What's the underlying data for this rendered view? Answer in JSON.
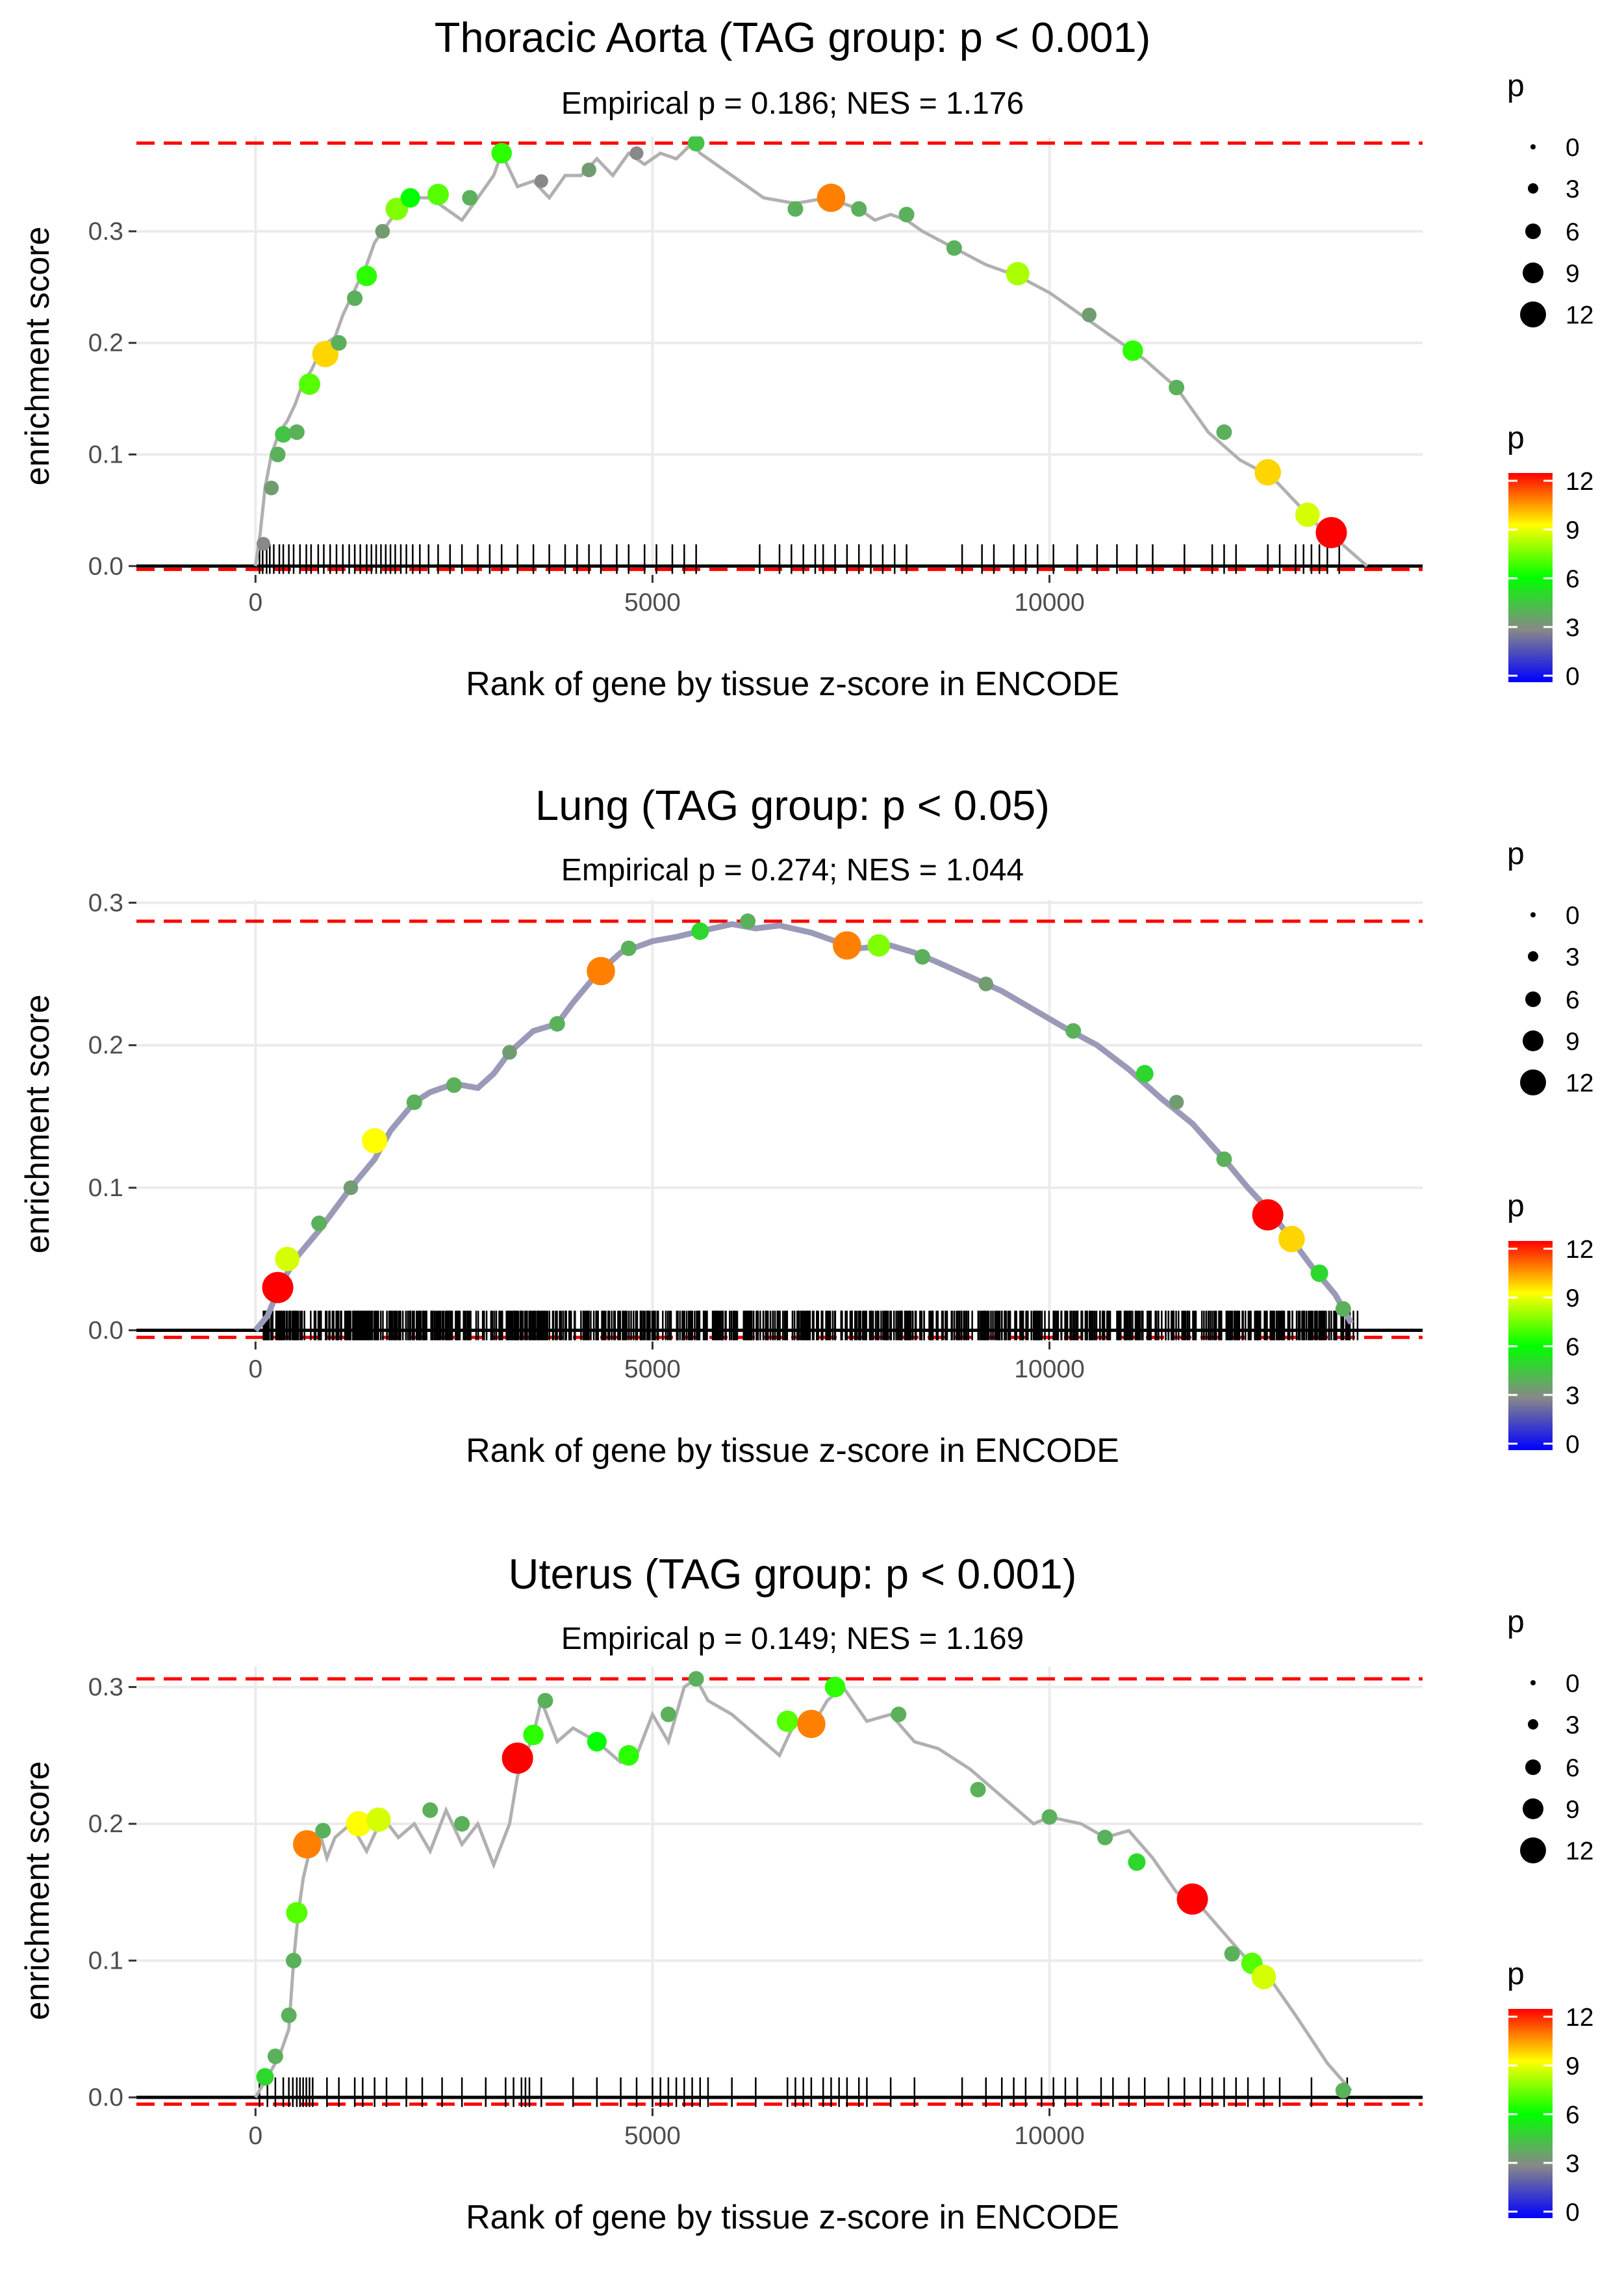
{
  "chart_data": [
    {
      "type": "line",
      "title": "Thoracic Aorta (TAG group: p < 0.001)",
      "subtitle": "Empirical p = 0.186; NES = 1.176",
      "xlabel": "Rank of gene by tissue z-score in ENCODE",
      "ylabel": "enrichment score",
      "xlim": [
        -1500,
        14700
      ],
      "ylim": [
        -0.008,
        0.385
      ],
      "x_ticks": [
        0,
        5000,
        10000
      ],
      "x_tick_labels": [
        "0",
        "5000",
        "10000"
      ],
      "y_ticks": [
        0.0,
        0.1,
        0.2,
        0.3
      ],
      "y_tick_labels": [
        "0.0",
        "0.1",
        "0.2",
        "0.3"
      ],
      "max_es": 0.379,
      "min_es": -0.003,
      "es_curve": {
        "x": [
          0,
          60,
          120,
          200,
          300,
          400,
          500,
          600,
          700,
          800,
          900,
          1000,
          1100,
          1200,
          1300,
          1400,
          1500,
          1600,
          1700,
          1800,
          2000,
          2200,
          2400,
          2600,
          2800,
          3000,
          3100,
          3300,
          3500,
          3700,
          3900,
          4100,
          4300,
          4500,
          4700,
          4900,
          5100,
          5300,
          5500,
          5600,
          6000,
          6400,
          6800,
          7200,
          7400,
          7600,
          7800,
          8000,
          8200,
          8400,
          8800,
          9200,
          9600,
          10000,
          10400,
          10800,
          11200,
          11600,
          12000,
          12400,
          12800,
          13200,
          13400,
          13600,
          14000
        ],
        "y": [
          0.0,
          0.03,
          0.07,
          0.1,
          0.12,
          0.13,
          0.145,
          0.165,
          0.175,
          0.19,
          0.2,
          0.205,
          0.225,
          0.24,
          0.255,
          0.27,
          0.29,
          0.3,
          0.31,
          0.32,
          0.33,
          0.33,
          0.32,
          0.31,
          0.33,
          0.35,
          0.37,
          0.34,
          0.345,
          0.33,
          0.35,
          0.35,
          0.365,
          0.35,
          0.37,
          0.36,
          0.37,
          0.365,
          0.379,
          0.37,
          0.35,
          0.33,
          0.325,
          0.33,
          0.325,
          0.32,
          0.31,
          0.315,
          0.31,
          0.3,
          0.285,
          0.27,
          0.26,
          0.245,
          0.225,
          0.205,
          0.185,
          0.16,
          0.12,
          0.095,
          0.08,
          0.05,
          0.035,
          0.025,
          0.0
        ]
      },
      "hits": [
        {
          "x": 100,
          "y": 0.02,
          "p": 3
        },
        {
          "x": 200,
          "y": 0.07,
          "p": 3.5
        },
        {
          "x": 280,
          "y": 0.1,
          "p": 4
        },
        {
          "x": 350,
          "y": 0.118,
          "p": 4.5
        },
        {
          "x": 520,
          "y": 0.12,
          "p": 4
        },
        {
          "x": 680,
          "y": 0.163,
          "p": 7
        },
        {
          "x": 880,
          "y": 0.19,
          "p": 9.5
        },
        {
          "x": 1050,
          "y": 0.2,
          "p": 4
        },
        {
          "x": 1250,
          "y": 0.24,
          "p": 4
        },
        {
          "x": 1400,
          "y": 0.26,
          "p": 6.5
        },
        {
          "x": 1600,
          "y": 0.3,
          "p": 3.5
        },
        {
          "x": 1780,
          "y": 0.32,
          "p": 7.5
        },
        {
          "x": 1950,
          "y": 0.33,
          "p": 6
        },
        {
          "x": 2300,
          "y": 0.333,
          "p": 7
        },
        {
          "x": 2700,
          "y": 0.33,
          "p": 4
        },
        {
          "x": 3100,
          "y": 0.37,
          "p": 6.5
        },
        {
          "x": 3600,
          "y": 0.345,
          "p": 3
        },
        {
          "x": 4200,
          "y": 0.355,
          "p": 3.5
        },
        {
          "x": 4800,
          "y": 0.37,
          "p": 3
        },
        {
          "x": 5550,
          "y": 0.379,
          "p": 4.5
        },
        {
          "x": 6800,
          "y": 0.32,
          "p": 4
        },
        {
          "x": 7250,
          "y": 0.33,
          "p": 10.5
        },
        {
          "x": 7600,
          "y": 0.32,
          "p": 4
        },
        {
          "x": 8200,
          "y": 0.315,
          "p": 4
        },
        {
          "x": 8800,
          "y": 0.285,
          "p": 4
        },
        {
          "x": 9600,
          "y": 0.262,
          "p": 8
        },
        {
          "x": 10500,
          "y": 0.225,
          "p": 3.5
        },
        {
          "x": 11050,
          "y": 0.193,
          "p": 6.5
        },
        {
          "x": 11600,
          "y": 0.16,
          "p": 4
        },
        {
          "x": 12200,
          "y": 0.12,
          "p": 4
        },
        {
          "x": 12750,
          "y": 0.084,
          "p": 9.5
        },
        {
          "x": 13250,
          "y": 0.046,
          "p": 8.5
        },
        {
          "x": 13550,
          "y": 0.03,
          "p": 12
        }
      ],
      "rug_ranks": [
        50,
        90,
        140,
        180,
        230,
        300,
        350,
        420,
        480,
        560,
        640,
        700,
        790,
        860,
        940,
        1020,
        1100,
        1180,
        1250,
        1320,
        1400,
        1460,
        1520,
        1580,
        1640,
        1700,
        1760,
        1830,
        1900,
        1980,
        2070,
        2180,
        2300,
        2450,
        2600,
        2800,
        2950,
        3100,
        3300,
        3500,
        3700,
        3900,
        4050,
        4200,
        4350,
        4550,
        4700,
        4900,
        5050,
        5250,
        5400,
        5550,
        6350,
        6600,
        6750,
        6900,
        7050,
        7150,
        7300,
        7450,
        7600,
        7750,
        7900,
        8050,
        8200,
        8900,
        9150,
        9300,
        9550,
        9700,
        9850,
        10050,
        10350,
        10600,
        10850,
        11100,
        11300,
        11700,
        12050,
        12200,
        12350,
        12750,
        12900,
        13100,
        13200,
        13300,
        13400,
        13500,
        13650
      ],
      "legend": {
        "size_title": "p",
        "size_labels": [
          "0",
          "3",
          "6",
          "9",
          "12"
        ],
        "color_title": "p",
        "color_labels": [
          "12",
          "9",
          "6",
          "3",
          "0"
        ]
      }
    },
    {
      "type": "line",
      "title": "Lung (TAG group: p < 0.05)",
      "subtitle": "Empirical p = 0.274; NES = 1.044",
      "xlabel": "Rank of gene by tissue z-score in ENCODE",
      "ylabel": "enrichment score",
      "xlim": [
        -1500,
        14700
      ],
      "ylim": [
        -0.008,
        0.302
      ],
      "x_ticks": [
        0,
        5000,
        10000
      ],
      "x_tick_labels": [
        "0",
        "5000",
        "10000"
      ],
      "y_ticks": [
        0.0,
        0.1,
        0.2,
        0.3
      ],
      "y_tick_labels": [
        "0.0",
        "0.1",
        "0.2",
        "0.3"
      ],
      "max_es": 0.287,
      "min_es": -0.005,
      "es_curve": {
        "x": [
          0,
          150,
          300,
          500,
          800,
          1000,
          1200,
          1500,
          1700,
          2000,
          2200,
          2500,
          2800,
          3000,
          3200,
          3500,
          3800,
          4000,
          4300,
          4600,
          5000,
          5300,
          5600,
          6000,
          6300,
          6600,
          7000,
          7300,
          7600,
          8000,
          8300,
          8600,
          9000,
          9400,
          9800,
          10200,
          10600,
          11000,
          11400,
          11800,
          12200,
          12500,
          12800,
          13100,
          13300,
          13600,
          13800
        ],
        "y": [
          0.0,
          0.01,
          0.03,
          0.05,
          0.07,
          0.085,
          0.1,
          0.12,
          0.14,
          0.16,
          0.167,
          0.173,
          0.17,
          0.18,
          0.195,
          0.21,
          0.215,
          0.23,
          0.25,
          0.265,
          0.273,
          0.276,
          0.28,
          0.285,
          0.282,
          0.284,
          0.279,
          0.273,
          0.268,
          0.27,
          0.265,
          0.258,
          0.248,
          0.238,
          0.225,
          0.212,
          0.2,
          0.183,
          0.163,
          0.145,
          0.12,
          0.1,
          0.082,
          0.06,
          0.045,
          0.025,
          0.005
        ]
      },
      "hits": [
        {
          "x": 280,
          "y": 0.03,
          "p": 12
        },
        {
          "x": 400,
          "y": 0.05,
          "p": 8.5
        },
        {
          "x": 800,
          "y": 0.075,
          "p": 4
        },
        {
          "x": 1200,
          "y": 0.1,
          "p": 3.5
        },
        {
          "x": 1500,
          "y": 0.133,
          "p": 9
        },
        {
          "x": 2000,
          "y": 0.16,
          "p": 4
        },
        {
          "x": 2500,
          "y": 0.172,
          "p": 4
        },
        {
          "x": 3200,
          "y": 0.195,
          "p": 3.5
        },
        {
          "x": 3800,
          "y": 0.215,
          "p": 4
        },
        {
          "x": 4350,
          "y": 0.252,
          "p": 10.5
        },
        {
          "x": 4700,
          "y": 0.268,
          "p": 4
        },
        {
          "x": 5600,
          "y": 0.28,
          "p": 5
        },
        {
          "x": 6200,
          "y": 0.287,
          "p": 4
        },
        {
          "x": 7450,
          "y": 0.27,
          "p": 10.5
        },
        {
          "x": 7850,
          "y": 0.27,
          "p": 7.5
        },
        {
          "x": 8400,
          "y": 0.262,
          "p": 4
        },
        {
          "x": 9200,
          "y": 0.243,
          "p": 3.5
        },
        {
          "x": 10300,
          "y": 0.21,
          "p": 4
        },
        {
          "x": 11200,
          "y": 0.18,
          "p": 5
        },
        {
          "x": 11600,
          "y": 0.16,
          "p": 3.5
        },
        {
          "x": 12200,
          "y": 0.12,
          "p": 4
        },
        {
          "x": 12750,
          "y": 0.081,
          "p": 12
        },
        {
          "x": 13050,
          "y": 0.064,
          "p": 9.5
        },
        {
          "x": 13400,
          "y": 0.04,
          "p": 5
        },
        {
          "x": 13700,
          "y": 0.015,
          "p": 4
        }
      ],
      "rug_ranks": [],
      "legend": {
        "size_title": "p",
        "size_labels": [
          "0",
          "3",
          "6",
          "9",
          "12"
        ],
        "color_title": "p",
        "color_labels": [
          "12",
          "9",
          "6",
          "3",
          "0"
        ]
      }
    },
    {
      "type": "line",
      "title": "Uterus (TAG group: p < 0.001)",
      "subtitle": "Empirical p = 0.149; NES = 1.169",
      "xlabel": "Rank of gene by tissue z-score in ENCODE",
      "ylabel": "enrichment score",
      "xlim": [
        -1500,
        14700
      ],
      "ylim": [
        -0.008,
        0.315
      ],
      "x_ticks": [
        0,
        5000,
        10000
      ],
      "x_tick_labels": [
        "0",
        "5000",
        "10000"
      ],
      "y_ticks": [
        0.0,
        0.1,
        0.2,
        0.3
      ],
      "y_tick_labels": [
        "0.0",
        "0.1",
        "0.2",
        "0.3"
      ],
      "max_es": 0.306,
      "min_es": -0.005,
      "es_curve": {
        "x": [
          0,
          150,
          300,
          420,
          480,
          540,
          600,
          700,
          800,
          900,
          1000,
          1200,
          1400,
          1600,
          1800,
          2000,
          2200,
          2400,
          2600,
          2800,
          3000,
          3200,
          3300,
          3400,
          3500,
          3600,
          3800,
          4000,
          4300,
          4600,
          4800,
          5000,
          5200,
          5400,
          5550,
          5700,
          6000,
          6300,
          6600,
          6800,
          7000,
          7200,
          7400,
          7700,
          8000,
          8300,
          8600,
          9000,
          9400,
          9800,
          10000,
          10400,
          10700,
          11000,
          11300,
          11600,
          11900,
          12200,
          12500,
          12800,
          13100,
          13500,
          13800
        ],
        "y": [
          0.0,
          0.015,
          0.03,
          0.05,
          0.1,
          0.135,
          0.16,
          0.185,
          0.195,
          0.175,
          0.19,
          0.2,
          0.18,
          0.205,
          0.19,
          0.2,
          0.18,
          0.21,
          0.185,
          0.2,
          0.17,
          0.2,
          0.235,
          0.25,
          0.265,
          0.29,
          0.26,
          0.27,
          0.26,
          0.245,
          0.25,
          0.28,
          0.26,
          0.3,
          0.306,
          0.29,
          0.28,
          0.265,
          0.25,
          0.275,
          0.27,
          0.29,
          0.3,
          0.275,
          0.28,
          0.26,
          0.255,
          0.24,
          0.22,
          0.2,
          0.205,
          0.2,
          0.19,
          0.195,
          0.175,
          0.15,
          0.14,
          0.12,
          0.1,
          0.085,
          0.06,
          0.025,
          0.005
        ]
      },
      "hits": [
        {
          "x": 120,
          "y": 0.015,
          "p": 5
        },
        {
          "x": 250,
          "y": 0.03,
          "p": 4
        },
        {
          "x": 420,
          "y": 0.06,
          "p": 4
        },
        {
          "x": 480,
          "y": 0.1,
          "p": 4
        },
        {
          "x": 520,
          "y": 0.135,
          "p": 7
        },
        {
          "x": 650,
          "y": 0.185,
          "p": 10.5
        },
        {
          "x": 850,
          "y": 0.195,
          "p": 4
        },
        {
          "x": 1300,
          "y": 0.2,
          "p": 9
        },
        {
          "x": 1550,
          "y": 0.203,
          "p": 8.5
        },
        {
          "x": 2200,
          "y": 0.21,
          "p": 4
        },
        {
          "x": 2600,
          "y": 0.2,
          "p": 4
        },
        {
          "x": 3300,
          "y": 0.248,
          "p": 12
        },
        {
          "x": 3500,
          "y": 0.265,
          "p": 6.5
        },
        {
          "x": 3650,
          "y": 0.29,
          "p": 4
        },
        {
          "x": 4300,
          "y": 0.26,
          "p": 6
        },
        {
          "x": 4700,
          "y": 0.25,
          "p": 6.5
        },
        {
          "x": 5200,
          "y": 0.28,
          "p": 4
        },
        {
          "x": 5550,
          "y": 0.306,
          "p": 4
        },
        {
          "x": 6700,
          "y": 0.275,
          "p": 7
        },
        {
          "x": 7000,
          "y": 0.273,
          "p": 10.5
        },
        {
          "x": 7300,
          "y": 0.3,
          "p": 6.5
        },
        {
          "x": 8100,
          "y": 0.28,
          "p": 4
        },
        {
          "x": 9100,
          "y": 0.225,
          "p": 4
        },
        {
          "x": 10000,
          "y": 0.205,
          "p": 4
        },
        {
          "x": 10700,
          "y": 0.19,
          "p": 4
        },
        {
          "x": 11100,
          "y": 0.172,
          "p": 5
        },
        {
          "x": 11800,
          "y": 0.145,
          "p": 12
        },
        {
          "x": 12300,
          "y": 0.105,
          "p": 4
        },
        {
          "x": 12550,
          "y": 0.098,
          "p": 7
        },
        {
          "x": 12700,
          "y": 0.088,
          "p": 8.5
        },
        {
          "x": 13700,
          "y": 0.005,
          "p": 4
        }
      ],
      "rug_ranks": [
        50,
        150,
        250,
        350,
        420,
        470,
        520,
        560,
        600,
        640,
        680,
        720,
        900,
        1050,
        1250,
        1350,
        1500,
        1650,
        1900,
        2100,
        2350,
        2600,
        2900,
        3150,
        3250,
        3350,
        3400,
        3450,
        3600,
        4000,
        4300,
        4600,
        4800,
        5000,
        5100,
        5200,
        5300,
        5400,
        5500,
        5600,
        5700,
        6000,
        6300,
        6700,
        6800,
        6900,
        7000,
        7150,
        7250,
        7350,
        7450,
        7600,
        7700,
        8000,
        8300,
        8900,
        9200,
        9400,
        9550,
        9700,
        9900,
        10050,
        10200,
        10350,
        10650,
        10800,
        11000,
        11200,
        11500,
        11700,
        11900,
        12050,
        12200,
        12350,
        12500,
        12700,
        12900,
        13300,
        13750
      ],
      "legend": {
        "size_title": "p",
        "size_labels": [
          "0",
          "3",
          "6",
          "9",
          "12"
        ],
        "color_title": "p",
        "color_labels": [
          "12",
          "9",
          "6",
          "3",
          "0"
        ]
      }
    }
  ]
}
